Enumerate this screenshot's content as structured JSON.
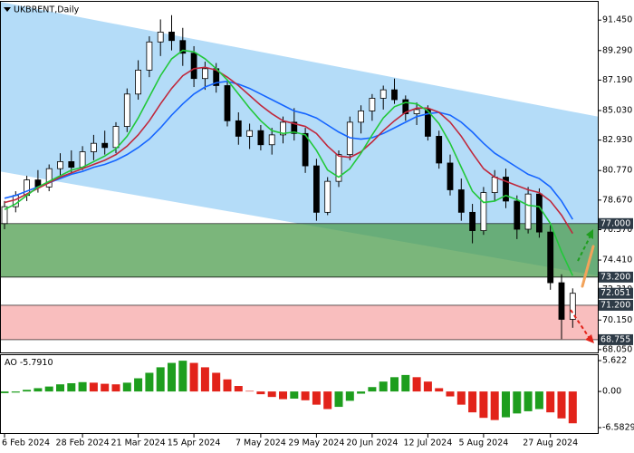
{
  "chart_data": [
    {
      "type": "candlestick",
      "title": "UKBRENT,Daily",
      "categories": [
        "6 Feb 2024",
        null,
        null,
        null,
        null,
        null,
        null,
        "28 Feb 2024",
        null,
        null,
        null,
        null,
        "21 Mar 2024",
        null,
        null,
        null,
        null,
        "15 Apr 2024",
        null,
        null,
        null,
        null,
        null,
        "7 May 2024",
        null,
        null,
        null,
        null,
        "29 May 2024",
        null,
        null,
        null,
        null,
        "20 Jun 2024",
        null,
        null,
        null,
        null,
        "12 Jul 2024",
        null,
        null,
        null,
        null,
        "5 Aug 2024",
        null,
        null,
        null,
        null,
        null,
        "27 Aug 2024",
        null,
        null
      ],
      "ohlc": [
        [
          77.0,
          78.6,
          76.6,
          78.2
        ],
        [
          78.2,
          79.3,
          77.8,
          79.0
        ],
        [
          79.0,
          80.4,
          78.6,
          80.1
        ],
        [
          80.1,
          80.8,
          79.2,
          79.6
        ],
        [
          79.6,
          81.2,
          79.3,
          80.9
        ],
        [
          80.9,
          82.0,
          80.3,
          81.4
        ],
        [
          81.4,
          82.2,
          80.6,
          81.0
        ],
        [
          81.0,
          82.5,
          80.8,
          82.1
        ],
        [
          82.1,
          83.3,
          81.5,
          82.7
        ],
        [
          82.7,
          83.6,
          81.9,
          82.4
        ],
        [
          82.4,
          84.2,
          82.0,
          83.9
        ],
        [
          83.9,
          86.6,
          83.5,
          86.2
        ],
        [
          86.2,
          88.6,
          85.8,
          87.9
        ],
        [
          87.9,
          90.3,
          87.4,
          89.9
        ],
        [
          89.9,
          91.5,
          88.9,
          90.6
        ],
        [
          90.6,
          91.8,
          89.3,
          90.0
        ],
        [
          90.0,
          90.9,
          88.2,
          89.1
        ],
        [
          89.1,
          89.6,
          86.7,
          87.3
        ],
        [
          87.3,
          88.5,
          86.5,
          88.0
        ],
        [
          88.0,
          88.4,
          86.3,
          86.8
        ],
        [
          86.8,
          87.2,
          83.9,
          84.3
        ],
        [
          84.3,
          84.9,
          82.6,
          83.2
        ],
        [
          83.2,
          84.1,
          82.3,
          83.6
        ],
        [
          83.6,
          84.0,
          82.2,
          82.6
        ],
        [
          82.6,
          83.8,
          81.9,
          83.3
        ],
        [
          83.3,
          84.6,
          82.7,
          84.2
        ],
        [
          84.2,
          85.2,
          82.9,
          83.4
        ],
        [
          83.4,
          83.8,
          80.6,
          81.1
        ],
        [
          81.1,
          81.6,
          77.2,
          77.8
        ],
        [
          77.8,
          80.3,
          77.6,
          80.0
        ],
        [
          80.0,
          82.2,
          79.6,
          81.9
        ],
        [
          81.9,
          84.6,
          81.5,
          84.2
        ],
        [
          84.2,
          85.4,
          83.4,
          85.0
        ],
        [
          85.0,
          86.2,
          84.3,
          85.9
        ],
        [
          85.9,
          86.8,
          85.1,
          86.5
        ],
        [
          86.5,
          87.3,
          85.5,
          85.8
        ],
        [
          85.8,
          86.1,
          84.3,
          84.8
        ],
        [
          84.8,
          85.6,
          84.0,
          85.1
        ],
        [
          85.1,
          85.4,
          82.9,
          83.2
        ],
        [
          83.2,
          83.6,
          80.9,
          81.3
        ],
        [
          81.3,
          81.9,
          79.0,
          79.4
        ],
        [
          79.4,
          80.2,
          77.2,
          77.8
        ],
        [
          77.8,
          78.4,
          75.6,
          76.5
        ],
        [
          76.5,
          79.6,
          76.2,
          79.2
        ],
        [
          79.2,
          80.8,
          78.6,
          80.3
        ],
        [
          80.3,
          80.9,
          78.1,
          78.6
        ],
        [
          78.6,
          79.0,
          75.9,
          76.6
        ],
        [
          76.6,
          79.6,
          76.3,
          79.1
        ],
        [
          79.1,
          79.5,
          76.0,
          76.4
        ],
        [
          76.4,
          76.9,
          72.3,
          72.8
        ],
        [
          72.8,
          73.4,
          68.8,
          70.2
        ],
        [
          70.2,
          72.4,
          69.6,
          72.051
        ]
      ],
      "up_color": "#ffffff",
      "down_color": "#000000",
      "lines": [
        {
          "color": "#1565ff",
          "values": [
            78.8,
            79.0,
            79.3,
            79.6,
            79.9,
            80.2,
            80.5,
            80.7,
            81.0,
            81.2,
            81.5,
            81.9,
            82.4,
            83.0,
            83.8,
            84.7,
            85.5,
            86.2,
            86.7,
            87.0,
            87.1,
            86.9,
            86.6,
            86.2,
            85.8,
            85.4,
            85.0,
            84.8,
            84.5,
            84.0,
            83.5,
            83.1,
            83.0,
            83.1,
            83.4,
            83.8,
            84.2,
            84.6,
            84.8,
            84.9,
            84.7,
            84.2,
            83.5,
            82.7,
            82.0,
            81.5,
            81.0,
            80.5,
            80.2,
            79.6,
            78.6,
            77.3
          ]
        },
        {
          "color": "#c0283c",
          "values": [
            78.5,
            78.7,
            79.1,
            79.5,
            79.9,
            80.3,
            80.6,
            80.9,
            81.2,
            81.5,
            81.9,
            82.5,
            83.3,
            84.3,
            85.5,
            86.6,
            87.5,
            88.0,
            88.1,
            87.9,
            87.4,
            86.8,
            86.1,
            85.4,
            84.8,
            84.3,
            84.1,
            83.9,
            83.4,
            82.5,
            81.8,
            81.7,
            82.1,
            82.8,
            83.6,
            84.3,
            84.9,
            85.2,
            85.2,
            84.9,
            84.2,
            83.2,
            82.0,
            80.9,
            80.3,
            80.0,
            79.7,
            79.4,
            79.2,
            78.6,
            77.6,
            76.3
          ]
        },
        {
          "color": "#22c83a",
          "values": [
            78.0,
            78.4,
            79.0,
            79.6,
            80.0,
            80.4,
            80.8,
            81.0,
            81.4,
            81.8,
            82.3,
            83.2,
            84.5,
            86.0,
            87.5,
            88.7,
            89.3,
            89.2,
            88.7,
            88.0,
            87.2,
            86.2,
            85.2,
            84.3,
            83.6,
            83.4,
            83.5,
            83.3,
            82.2,
            80.8,
            80.3,
            80.9,
            82.0,
            83.3,
            84.5,
            85.3,
            85.6,
            85.5,
            85.0,
            84.1,
            82.7,
            81.0,
            79.3,
            78.5,
            78.6,
            79.0,
            78.7,
            78.3,
            78.2,
            77.0,
            75.0,
            73.3
          ]
        }
      ],
      "channel": {
        "upper": [
          92.75,
          84.6
        ],
        "lower": [
          80.7,
          73.3
        ],
        "color": "#b4dcf8"
      },
      "zones": [
        {
          "range": [
            77.0,
            73.2
          ],
          "color": "#4f9d4f"
        },
        {
          "range": [
            71.2,
            68.755
          ],
          "color": "#f7a8a8"
        }
      ],
      "levels": [
        {
          "value": 77.0,
          "label": "77.000"
        },
        {
          "value": 73.2,
          "label": "73.200"
        },
        {
          "value": 72.051,
          "label": "72.051"
        },
        {
          "value": 71.2,
          "label": "71.200"
        },
        {
          "value": 68.755,
          "label": "68.755"
        }
      ],
      "ylim": [
        67.85,
        92.75
      ],
      "yticks": [
        {
          "value": 91.45,
          "label": "91.450"
        },
        {
          "value": 89.29,
          "label": "89.290"
        },
        {
          "value": 87.19,
          "label": "87.190"
        },
        {
          "value": 85.03,
          "label": "85.030"
        },
        {
          "value": 82.93,
          "label": "82.930"
        },
        {
          "value": 80.77,
          "label": "80.770"
        },
        {
          "value": 78.67,
          "label": "78.670"
        },
        {
          "value": 76.57,
          "label": "76.570"
        },
        {
          "value": 74.41,
          "label": "74.410"
        },
        {
          "value": 72.31,
          "label": "72.310"
        },
        {
          "value": 70.15,
          "label": "70.150"
        },
        {
          "value": 68.05,
          "label": "68.050"
        }
      ]
    },
    {
      "type": "bar",
      "name": "AO",
      "current_label": "-5.7910",
      "values": [
        -0.3,
        -0.2,
        0.3,
        0.6,
        0.9,
        1.3,
        1.5,
        1.7,
        1.6,
        1.4,
        1.3,
        1.6,
        2.4,
        3.4,
        4.4,
        5.2,
        5.6,
        5.2,
        4.4,
        3.4,
        2.2,
        1.0,
        0.1,
        -0.5,
        -1.0,
        -1.4,
        -1.3,
        -1.6,
        -2.4,
        -3.2,
        -2.8,
        -1.7,
        -0.4,
        0.8,
        1.8,
        2.6,
        3.0,
        2.6,
        1.8,
        0.6,
        -0.9,
        -2.4,
        -3.8,
        -4.8,
        -5.2,
        -4.7,
        -4.0,
        -3.6,
        -3.2,
        -3.8,
        -4.9,
        -5.791
      ],
      "up_color": "#1e9e1e",
      "down_color": "#e2231a",
      "ylim": [
        -7.57,
        6.61
      ],
      "yticks": [
        5.622,
        {
          "value": 0,
          "label": "0.00"
        },
        -6.5829
      ]
    }
  ]
}
